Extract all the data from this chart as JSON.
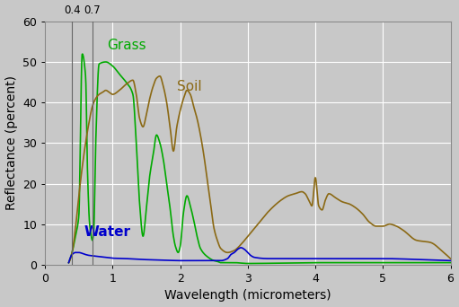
{
  "title": "",
  "xlabel": "Wavelength (micrometers)",
  "ylabel": "Reflectance (percent)",
  "xlim": [
    0,
    6
  ],
  "ylim": [
    0,
    60
  ],
  "xticks": [
    0,
    1,
    2,
    3,
    4,
    5,
    6
  ],
  "yticks": [
    0,
    10,
    20,
    30,
    40,
    50,
    60
  ],
  "vlines": [
    0.4,
    0.7
  ],
  "vline_labels": [
    "0.4",
    "0.7"
  ],
  "background_color": "#c8c8c8",
  "grass_color": "#00aa00",
  "soil_color": "#8B6914",
  "water_color": "#0000cc",
  "grass_label": "Grass",
  "soil_label": "Soil",
  "water_label": "Water",
  "figsize": [
    5.11,
    3.42
  ],
  "dpi": 100
}
